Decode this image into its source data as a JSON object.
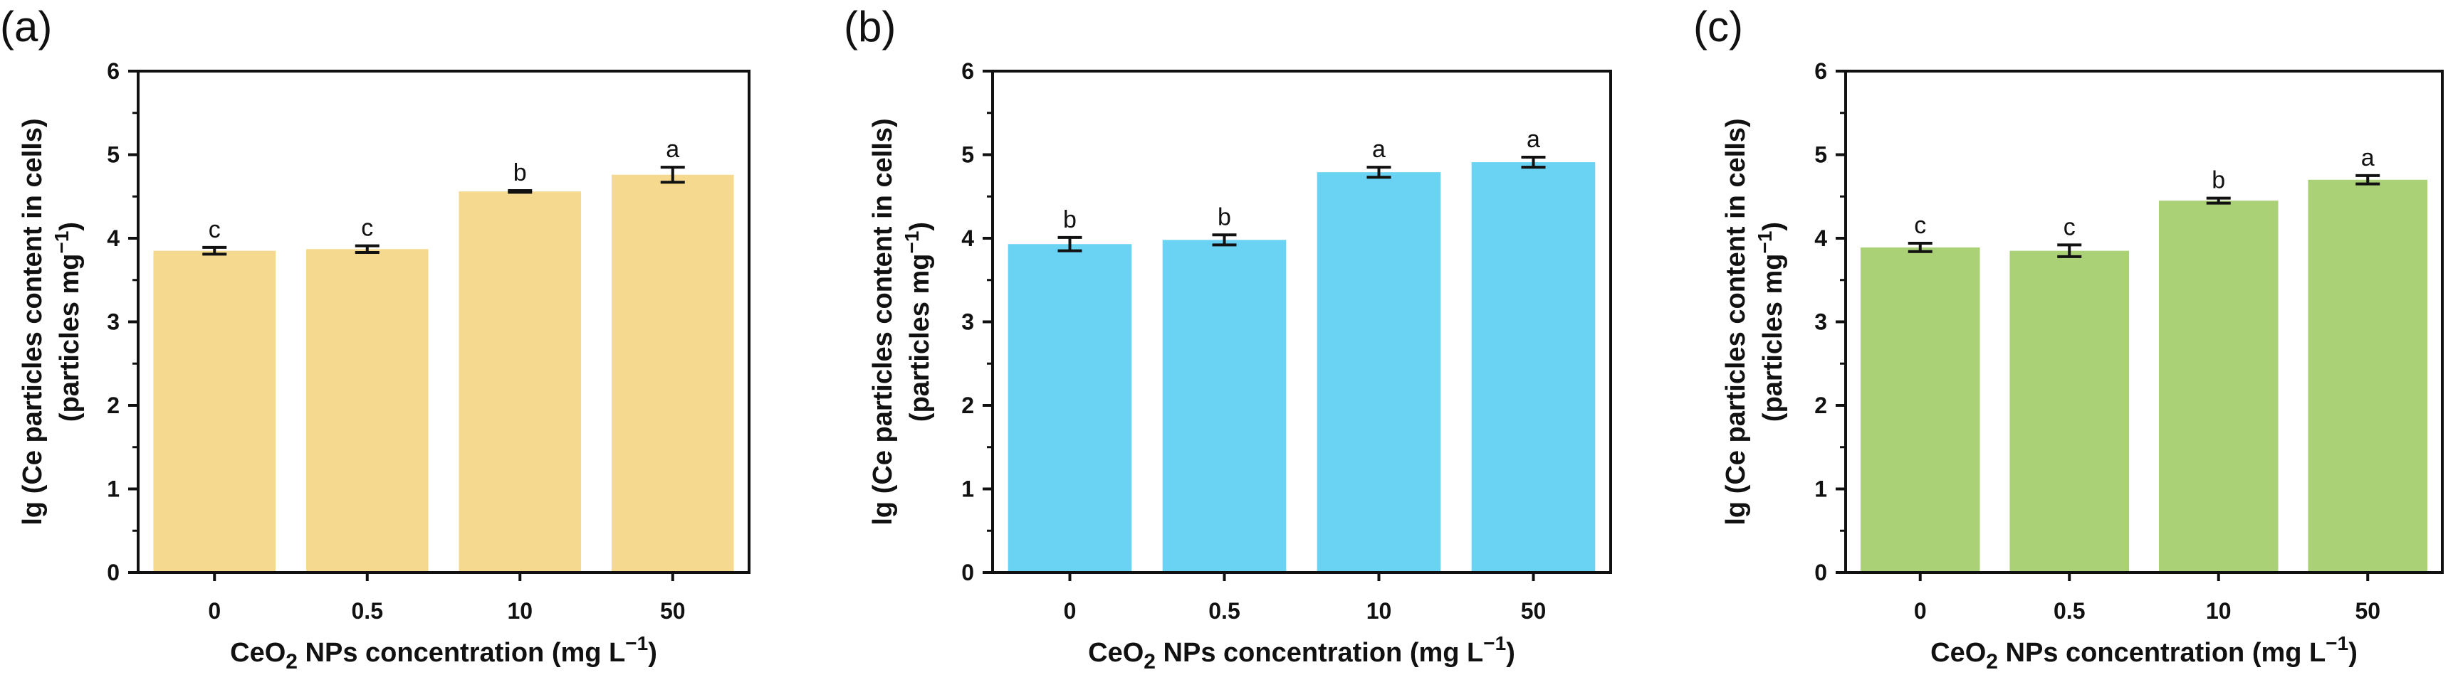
{
  "chart_data": [
    {
      "type": "bar",
      "panel": "(a)",
      "categories": [
        "0",
        "0.5",
        "10",
        "50"
      ],
      "values": [
        3.85,
        3.87,
        4.56,
        4.76
      ],
      "errors": [
        0.04,
        0.04,
        0.01,
        0.09
      ],
      "significance": [
        "c",
        "c",
        "b",
        "a"
      ],
      "color": "#f5d98e",
      "ylim": [
        0,
        6
      ],
      "yticks": [
        "0",
        "1",
        "2",
        "3",
        "4",
        "5",
        "6"
      ],
      "ylabel_line1": "lg (Ce particles content in cells)",
      "ylabel_line2": "(particles mg",
      "ylabel_sup": "−1",
      "ylabel_end": ")",
      "xlabel_pre": "CeO",
      "xlabel_sub": "2",
      "xlabel_mid": " NPs concentration (mg L",
      "xlabel_sup": "−1",
      "xlabel_end": ")"
    },
    {
      "type": "bar",
      "panel": "(b)",
      "categories": [
        "0",
        "0.5",
        "10",
        "50"
      ],
      "values": [
        3.93,
        3.98,
        4.79,
        4.91
      ],
      "errors": [
        0.08,
        0.06,
        0.06,
        0.06
      ],
      "significance": [
        "b",
        "b",
        "a",
        "a"
      ],
      "color": "#6ad2f2",
      "ylim": [
        0,
        6
      ],
      "yticks": [
        "0",
        "1",
        "2",
        "3",
        "4",
        "5",
        "6"
      ],
      "ylabel_line1": "lg (Ce particles content in cells)",
      "ylabel_line2": "(particles mg",
      "ylabel_sup": "−1",
      "ylabel_end": ")",
      "xlabel_pre": "CeO",
      "xlabel_sub": "2",
      "xlabel_mid": " NPs concentration (mg L",
      "xlabel_sup": "−1",
      "xlabel_end": ")"
    },
    {
      "type": "bar",
      "panel": "(c)",
      "categories": [
        "0",
        "0.5",
        "10",
        "50"
      ],
      "values": [
        3.89,
        3.85,
        4.45,
        4.7
      ],
      "errors": [
        0.05,
        0.07,
        0.03,
        0.05
      ],
      "significance": [
        "c",
        "c",
        "b",
        "a"
      ],
      "color": "#abd177",
      "ylim": [
        0,
        6
      ],
      "yticks": [
        "0",
        "1",
        "2",
        "3",
        "4",
        "5",
        "6"
      ],
      "ylabel_line1": "lg (Ce particles content in cells)",
      "ylabel_line2": "(particles mg",
      "ylabel_sup": "−1",
      "ylabel_end": ")",
      "xlabel_pre": "CeO",
      "xlabel_sub": "2",
      "xlabel_mid": " NPs concentration (mg L",
      "xlabel_sup": "−1",
      "xlabel_end": ")"
    }
  ]
}
